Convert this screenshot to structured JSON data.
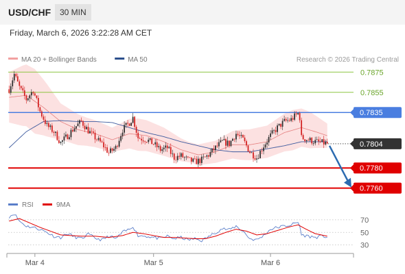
{
  "header": {
    "symbol": "USD/CHF",
    "timeframe": "30 MIN"
  },
  "datetime": "Friday, March 6, 2026 3:22:28 AM CET",
  "colors": {
    "resistance": "#8cc641",
    "pivot": "#4a7ee0",
    "support": "#e00000",
    "bollinger_fill": "#fbdcdc",
    "ma20": "#e58080",
    "ma50": "#3d5a9e",
    "candle_up": "#2c2c2c",
    "candle_down": "#d32020",
    "rsi": "#5a7ec9",
    "rsi_ma": "#e00000",
    "arrow": "#2c6bb0"
  },
  "chart_data": [
    {
      "type": "candlestick",
      "legend": [
        {
          "name": "MA 20 + Bollinger Bands",
          "color": "#f2a0a0"
        },
        {
          "name": "MA 50",
          "color": "#2c4f8c"
        }
      ],
      "watermark": "Research © 2026 Trading Central",
      "ylim": [
        0.7755,
        0.7882
      ],
      "x_ticks": [
        "Mar 4",
        "Mar 5",
        "Mar 6"
      ],
      "x_tick_bars": [
        15,
        84,
        152
      ],
      "bar_count": 186,
      "levels": [
        {
          "label": "0.7875",
          "value": 0.7875,
          "kind": "resistance"
        },
        {
          "label": "0.7855",
          "value": 0.7855,
          "kind": "resistance"
        },
        {
          "label": "0.7835",
          "value": 0.7835,
          "kind": "pivot"
        },
        {
          "label": "0.7780",
          "value": 0.778,
          "kind": "support"
        },
        {
          "label": "0.7760",
          "value": 0.776,
          "kind": "support"
        }
      ],
      "last_price": {
        "label": "0.7804",
        "value": 0.7804
      },
      "price_path": [
        [
          0,
          0.7858
        ],
        [
          3,
          0.7873
        ],
        [
          6,
          0.786
        ],
        [
          10,
          0.7848
        ],
        [
          14,
          0.7857
        ],
        [
          18,
          0.7836
        ],
        [
          22,
          0.7822
        ],
        [
          26,
          0.7816
        ],
        [
          30,
          0.7805
        ],
        [
          34,
          0.7812
        ],
        [
          38,
          0.782
        ],
        [
          42,
          0.7826
        ],
        [
          46,
          0.7817
        ],
        [
          50,
          0.781
        ],
        [
          54,
          0.7804
        ],
        [
          58,
          0.7795
        ],
        [
          62,
          0.78
        ],
        [
          66,
          0.7818
        ],
        [
          70,
          0.7825
        ],
        [
          72,
          0.783
        ],
        [
          75,
          0.781
        ],
        [
          80,
          0.7808
        ],
        [
          84,
          0.7804
        ],
        [
          88,
          0.7798
        ],
        [
          92,
          0.78
        ],
        [
          96,
          0.779
        ],
        [
          100,
          0.7792
        ],
        [
          104,
          0.7788
        ],
        [
          108,
          0.7786
        ],
        [
          112,
          0.7788
        ],
        [
          116,
          0.7793
        ],
        [
          120,
          0.78
        ],
        [
          124,
          0.7806
        ],
        [
          128,
          0.7804
        ],
        [
          132,
          0.7814
        ],
        [
          136,
          0.7808
        ],
        [
          140,
          0.7796
        ],
        [
          144,
          0.779
        ],
        [
          148,
          0.7802
        ],
        [
          152,
          0.7812
        ],
        [
          156,
          0.782
        ],
        [
          160,
          0.7826
        ],
        [
          164,
          0.7828
        ],
        [
          168,
          0.7834
        ],
        [
          169,
          0.783
        ],
        [
          170,
          0.781
        ],
        [
          174,
          0.7808
        ],
        [
          178,
          0.7806
        ],
        [
          182,
          0.7805
        ],
        [
          185,
          0.7804
        ]
      ],
      "ma20_path": [
        [
          0,
          0.785
        ],
        [
          10,
          0.7852
        ],
        [
          20,
          0.784
        ],
        [
          30,
          0.7826
        ],
        [
          40,
          0.7818
        ],
        [
          50,
          0.7814
        ],
        [
          60,
          0.7808
        ],
        [
          70,
          0.7814
        ],
        [
          80,
          0.7812
        ],
        [
          90,
          0.7806
        ],
        [
          100,
          0.7798
        ],
        [
          110,
          0.7793
        ],
        [
          120,
          0.7796
        ],
        [
          130,
          0.7803
        ],
        [
          140,
          0.7803
        ],
        [
          150,
          0.7806
        ],
        [
          160,
          0.7815
        ],
        [
          170,
          0.782
        ],
        [
          178,
          0.7816
        ],
        [
          185,
          0.7812
        ]
      ],
      "ma50_path": [
        [
          0,
          0.78
        ],
        [
          10,
          0.7816
        ],
        [
          20,
          0.7826
        ],
        [
          30,
          0.7827
        ],
        [
          40,
          0.7826
        ],
        [
          50,
          0.7826
        ],
        [
          60,
          0.7825
        ],
        [
          70,
          0.782
        ],
        [
          80,
          0.7815
        ],
        [
          90,
          0.7811
        ],
        [
          100,
          0.7806
        ],
        [
          110,
          0.7802
        ],
        [
          120,
          0.7798
        ],
        [
          130,
          0.7796
        ],
        [
          140,
          0.7796
        ],
        [
          150,
          0.7799
        ],
        [
          160,
          0.7802
        ],
        [
          170,
          0.7806
        ],
        [
          178,
          0.7806
        ],
        [
          185,
          0.7806
        ]
      ],
      "bb_width_path": [
        [
          0,
          0.0025
        ],
        [
          8,
          0.003
        ],
        [
          15,
          0.0032
        ],
        [
          22,
          0.0026
        ],
        [
          30,
          0.0018
        ],
        [
          45,
          0.0014
        ],
        [
          60,
          0.0012
        ],
        [
          75,
          0.0016
        ],
        [
          90,
          0.0014
        ],
        [
          105,
          0.001
        ],
        [
          120,
          0.0011
        ],
        [
          135,
          0.0015
        ],
        [
          150,
          0.0016
        ],
        [
          165,
          0.002
        ],
        [
          175,
          0.0018
        ],
        [
          185,
          0.0012
        ]
      ],
      "forecast_target": 0.776
    },
    {
      "type": "line",
      "legend": [
        {
          "name": "RSI",
          "color": "#5a7ec9"
        },
        {
          "name": "9MA",
          "color": "#e00000"
        }
      ],
      "ylim": [
        22,
        84
      ],
      "y_ticks": [
        70,
        50,
        30
      ],
      "rsi_path": [
        [
          0,
          75
        ],
        [
          3,
          80
        ],
        [
          6,
          68
        ],
        [
          10,
          60
        ],
        [
          14,
          58
        ],
        [
          18,
          55
        ],
        [
          22,
          50
        ],
        [
          26,
          44
        ],
        [
          30,
          42
        ],
        [
          34,
          48
        ],
        [
          38,
          43
        ],
        [
          42,
          40
        ],
        [
          46,
          47
        ],
        [
          50,
          41
        ],
        [
          54,
          38
        ],
        [
          58,
          44
        ],
        [
          62,
          40
        ],
        [
          66,
          50
        ],
        [
          70,
          55
        ],
        [
          72,
          60
        ],
        [
          75,
          45
        ],
        [
          80,
          44
        ],
        [
          84,
          42
        ],
        [
          88,
          40
        ],
        [
          92,
          44
        ],
        [
          96,
          40
        ],
        [
          100,
          42
        ],
        [
          104,
          38
        ],
        [
          108,
          40
        ],
        [
          112,
          37
        ],
        [
          116,
          43
        ],
        [
          120,
          50
        ],
        [
          124,
          56
        ],
        [
          128,
          54
        ],
        [
          132,
          60
        ],
        [
          136,
          52
        ],
        [
          140,
          40
        ],
        [
          144,
          38
        ],
        [
          148,
          45
        ],
        [
          152,
          55
        ],
        [
          156,
          58
        ],
        [
          160,
          60
        ],
        [
          164,
          62
        ],
        [
          168,
          66
        ],
        [
          169,
          60
        ],
        [
          170,
          46
        ],
        [
          174,
          44
        ],
        [
          178,
          42
        ],
        [
          182,
          44
        ],
        [
          185,
          43
        ]
      ],
      "ma_path": [
        [
          0,
          68
        ],
        [
          6,
          72
        ],
        [
          12,
          65
        ],
        [
          18,
          58
        ],
        [
          24,
          52
        ],
        [
          30,
          46
        ],
        [
          36,
          45
        ],
        [
          42,
          44
        ],
        [
          50,
          44
        ],
        [
          58,
          42
        ],
        [
          66,
          45
        ],
        [
          72,
          50
        ],
        [
          78,
          48
        ],
        [
          84,
          45
        ],
        [
          90,
          42
        ],
        [
          96,
          42
        ],
        [
          102,
          41
        ],
        [
          108,
          40
        ],
        [
          114,
          40
        ],
        [
          120,
          44
        ],
        [
          126,
          50
        ],
        [
          132,
          55
        ],
        [
          138,
          52
        ],
        [
          144,
          46
        ],
        [
          150,
          48
        ],
        [
          156,
          53
        ],
        [
          162,
          58
        ],
        [
          168,
          62
        ],
        [
          172,
          56
        ],
        [
          178,
          48
        ],
        [
          185,
          44
        ]
      ]
    }
  ]
}
